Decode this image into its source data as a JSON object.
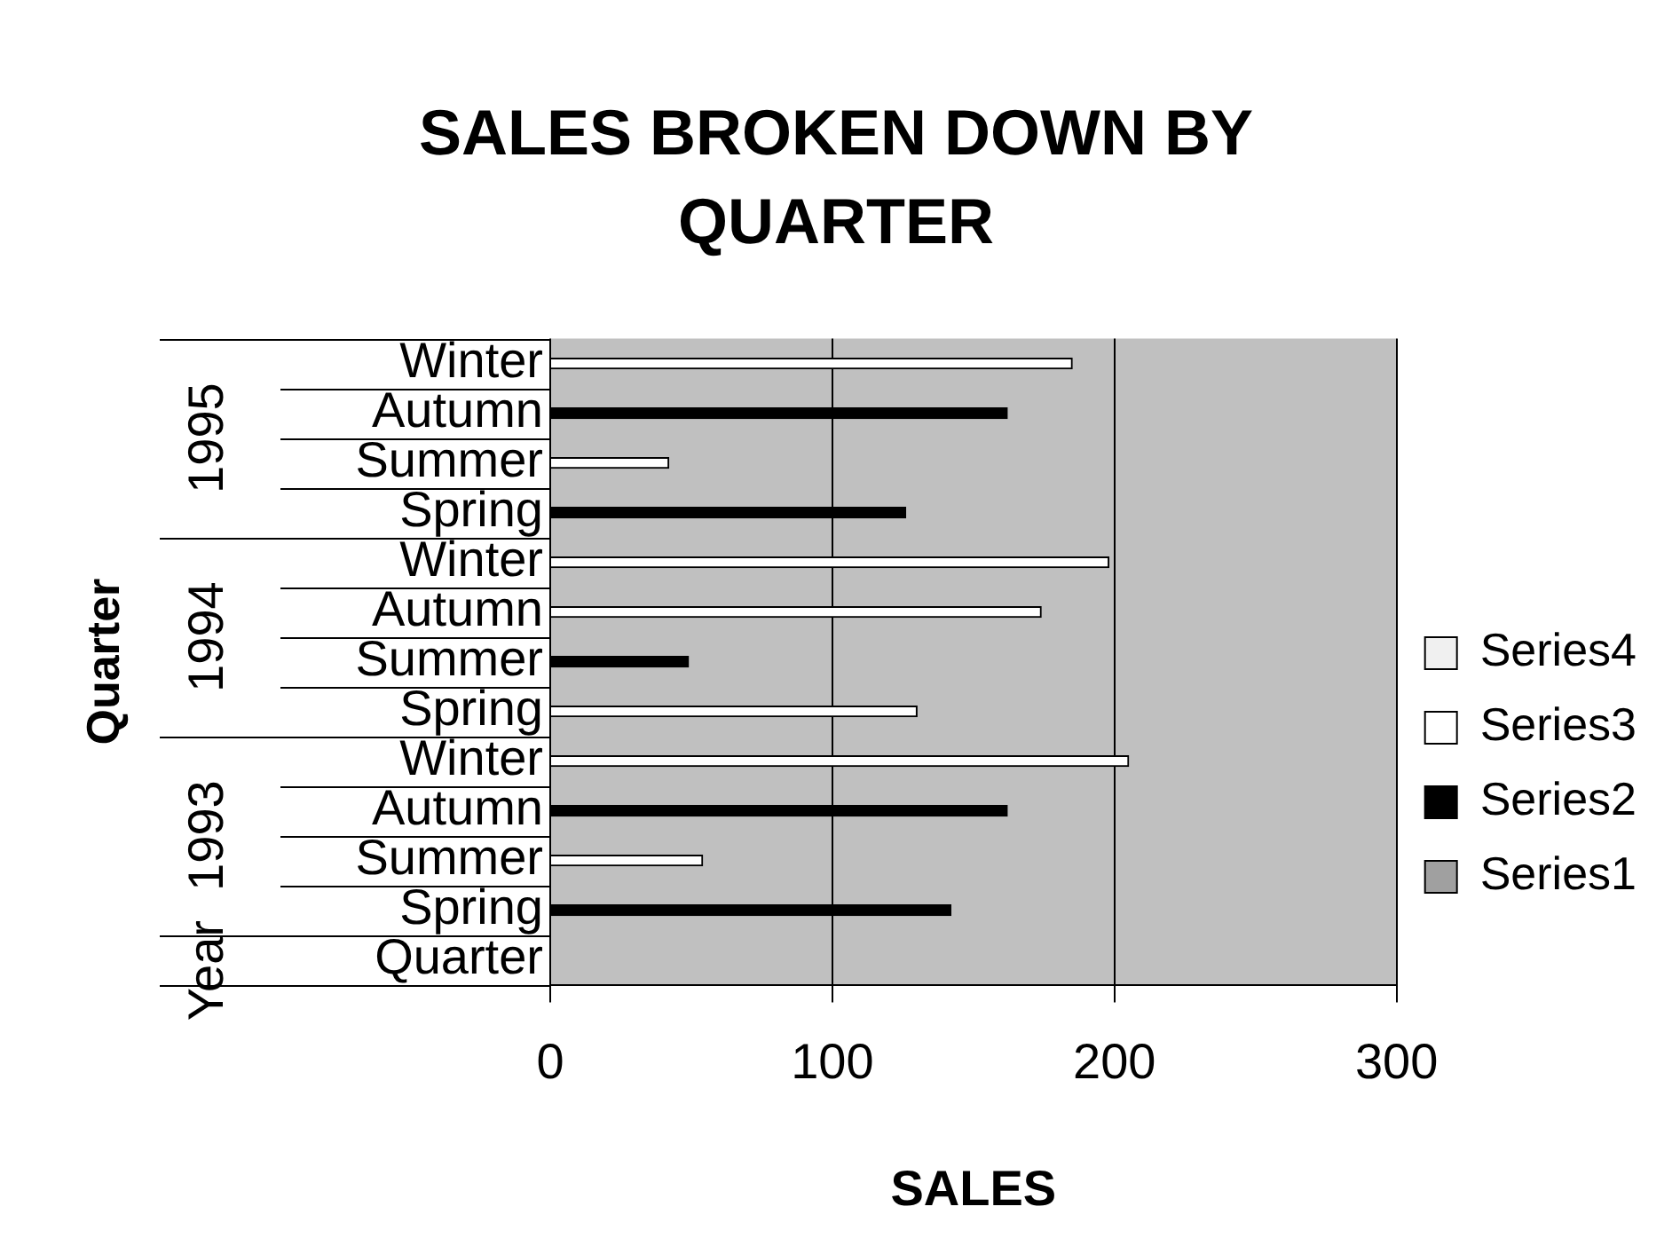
{
  "chart_data": {
    "type": "bar",
    "orientation": "horizontal",
    "title": "SALES BROKEN DOWN BY QUARTER",
    "xlabel": "SALES",
    "ylabel": "Quarter",
    "categories": [
      "Winter",
      "Autumn",
      "Summer",
      "Spring",
      "Winter",
      "Autumn",
      "Summer",
      "Spring",
      "Winter",
      "Autumn",
      "Summer",
      "Spring",
      "Quarter"
    ],
    "series": [
      {
        "name": "Series1",
        "color": "#a0a0a0",
        "values": [
          null,
          null,
          null,
          null,
          null,
          null,
          null,
          null,
          null,
          null,
          null,
          null,
          null
        ]
      },
      {
        "name": "Series2",
        "color": "#000000",
        "values": [
          null,
          162,
          null,
          126,
          null,
          null,
          49,
          null,
          null,
          162,
          null,
          142,
          null
        ]
      },
      {
        "name": "Series3",
        "color": "#ffffff",
        "values": [
          185,
          null,
          42,
          null,
          198,
          174,
          null,
          130,
          205,
          null,
          54,
          null,
          null
        ]
      },
      {
        "name": "Series4",
        "color": "#f0f0f0",
        "values": [
          null,
          null,
          null,
          null,
          null,
          null,
          null,
          null,
          null,
          null,
          null,
          null,
          null
        ]
      }
    ],
    "annotations": [
      "1995",
      "1994",
      "1993",
      "Year"
    ],
    "xlim": [
      0,
      300
    ],
    "xticks": [
      0,
      100,
      200,
      300
    ],
    "grid": "x",
    "legend": "right"
  }
}
